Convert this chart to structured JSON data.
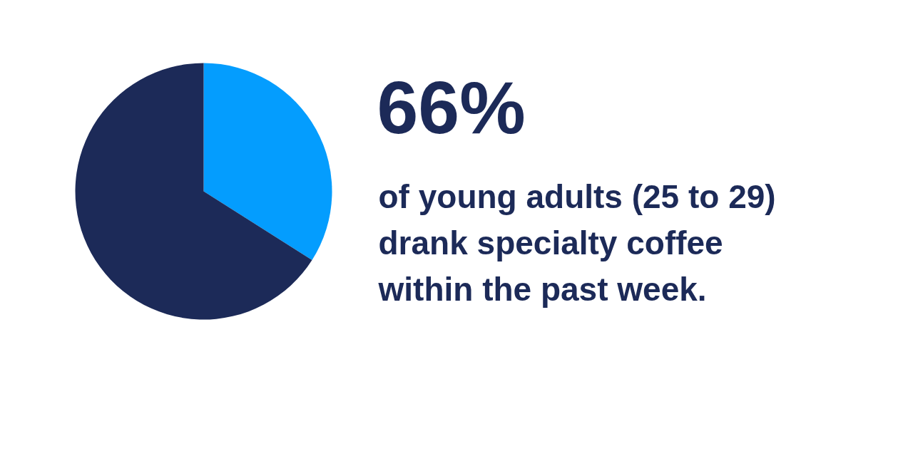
{
  "chart_data": {
    "type": "pie",
    "title": "66%",
    "subtitle": "of young adults (25 to 29) drank specialty coffee within the past week.",
    "categories": [
      null,
      null
    ],
    "values": [
      34,
      66
    ],
    "colors": [
      "#049dfe",
      "#1c2a58"
    ]
  }
}
